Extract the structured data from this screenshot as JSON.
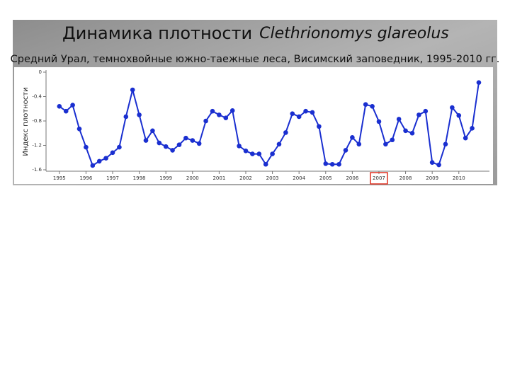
{
  "chart_data": {
    "type": "line",
    "title": "Динамика плотности",
    "title_species": "Clethrionomys glareolus",
    "subtitle": "Средний Урал, темнохвойные южно-таежные леса, Висимский заповедник, 1995-2010 гг.",
    "y_label": "Индекс плотности",
    "x": [
      1995,
      1995.25,
      1995.5,
      1995.75,
      1996,
      1996.25,
      1996.5,
      1996.75,
      1997,
      1997.25,
      1997.5,
      1997.75,
      1998,
      1998.25,
      1998.5,
      1998.75,
      1999,
      1999.25,
      1999.5,
      1999.75,
      2000,
      2000.25,
      2000.5,
      2000.75,
      2001,
      2001.25,
      2001.5,
      2001.75,
      2002,
      2002.25,
      2002.5,
      2002.75,
      2003,
      2003.25,
      2003.5,
      2003.75,
      2004,
      2004.25,
      2004.5,
      2004.75,
      2005,
      2005.25,
      2005.5,
      2005.75,
      2006,
      2006.25,
      2006.5,
      2006.75,
      2007,
      2007.25,
      2007.5,
      2007.75,
      2008,
      2008.25,
      2008.5,
      2008.75,
      2009,
      2009.25,
      2009.5,
      2009.75,
      2010,
      2010.25,
      2010.5,
      2010.75
    ],
    "series": [
      {
        "color": "#1a2fd0",
        "values": [
          -0.56,
          -0.64,
          -0.54,
          -0.93,
          -1.23,
          -1.53,
          -1.46,
          -1.41,
          -1.32,
          -1.23,
          -0.73,
          -0.29,
          -0.7,
          -1.12,
          -0.96,
          -1.16,
          -1.22,
          -1.28,
          -1.19,
          -1.08,
          -1.12,
          -1.17,
          -0.8,
          -0.64,
          -0.7,
          -0.75,
          -0.63,
          -1.21,
          -1.29,
          -1.34,
          -1.34,
          -1.51,
          -1.34,
          -1.18,
          -0.99,
          -0.68,
          -0.73,
          -0.64,
          -0.66,
          -0.89,
          -1.5,
          -1.51,
          -1.51,
          -1.28,
          -1.07,
          -1.18,
          -0.53,
          -0.56,
          -0.81,
          -1.18,
          -1.11,
          -0.77,
          -0.96,
          -1.0,
          -0.7,
          -0.64,
          -1.48,
          -1.52,
          -1.18,
          -0.58,
          -0.71,
          -1.08,
          -0.92,
          -0.17
        ]
      }
    ],
    "xlim": [
      1994.5,
      2011.15
    ],
    "xticks": [
      1995,
      1996,
      1997,
      1998,
      1999,
      2000,
      2001,
      2002,
      2003,
      2004,
      2005,
      2006,
      2007,
      2008,
      2009,
      2010
    ],
    "ylim": [
      -1.6,
      0
    ],
    "yticks": [
      0,
      -0.4,
      -0.8,
      -1.2,
      -1.6
    ],
    "highlight": {
      "x": 2007,
      "color": "#e03020"
    }
  }
}
